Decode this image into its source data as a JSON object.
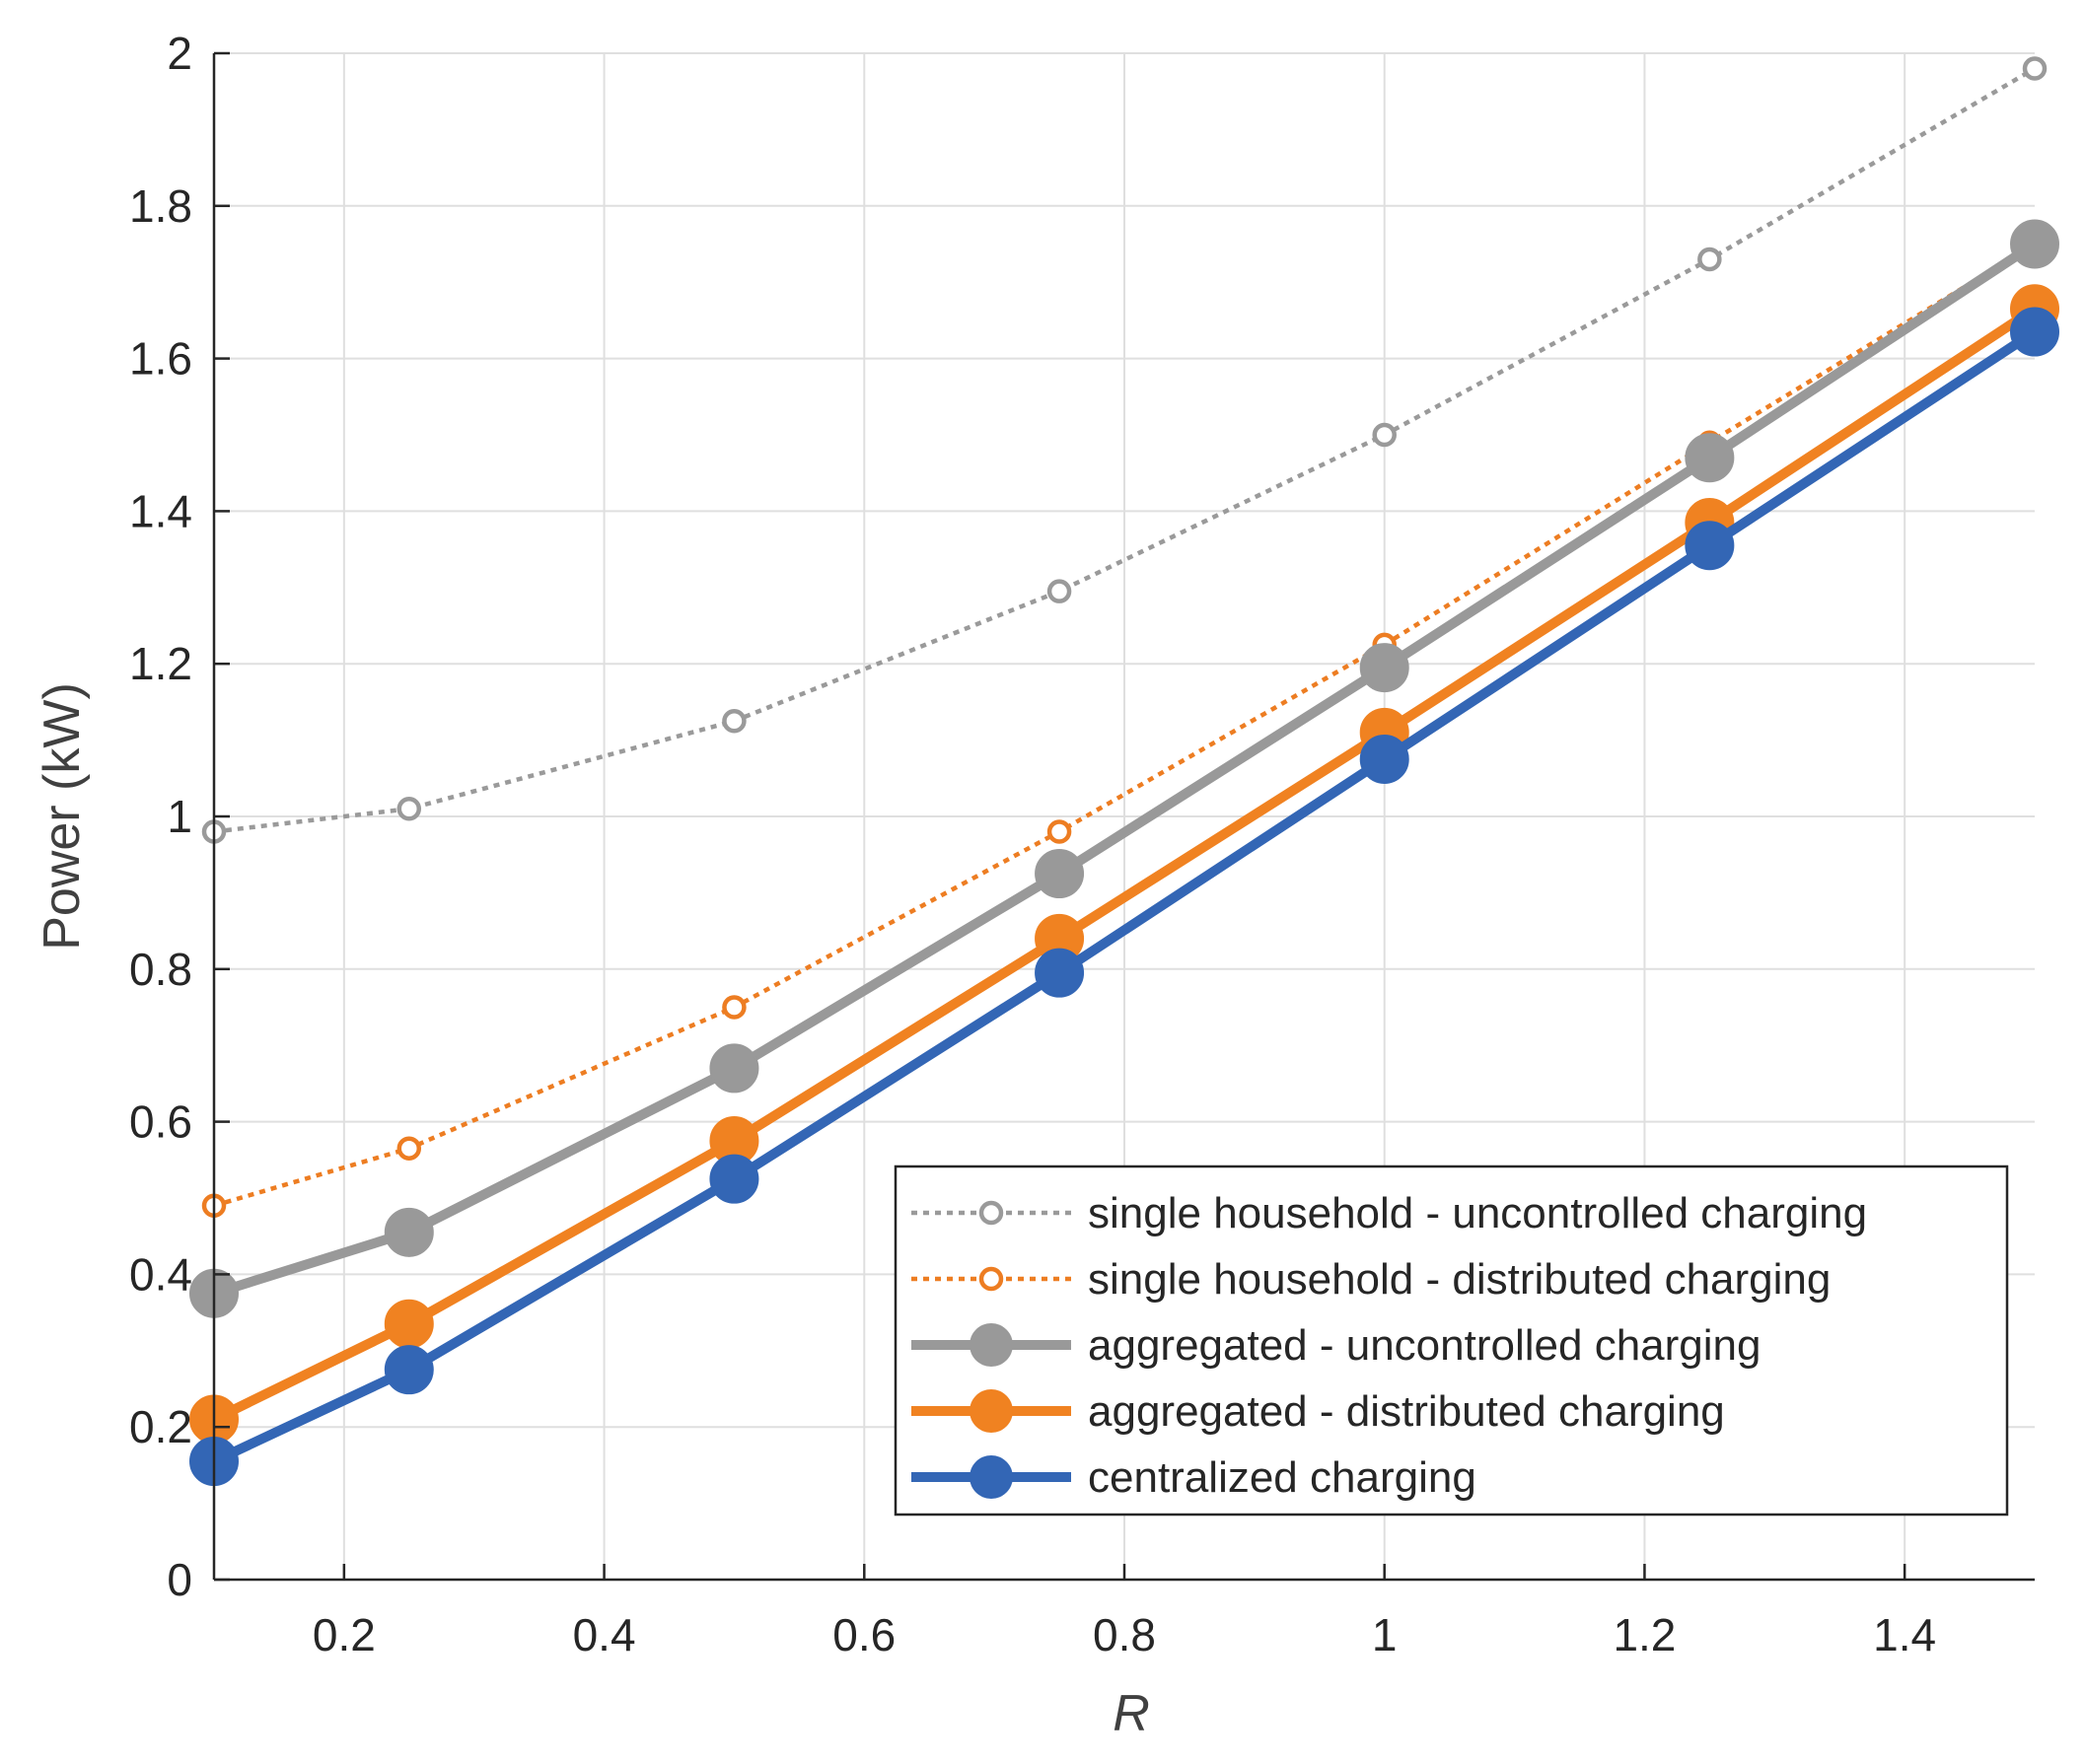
{
  "chart_data": {
    "type": "line",
    "title": "",
    "xlabel": "R",
    "ylabel": "Power (kW)",
    "xlim": [
      0.1,
      1.5
    ],
    "ylim": [
      0,
      2
    ],
    "grid": true,
    "legend_position": "bottom-right",
    "x": [
      0.1,
      0.25,
      0.5,
      0.75,
      1.0,
      1.25,
      1.5
    ],
    "xticks": [
      0.2,
      0.4,
      0.6,
      0.8,
      1,
      1.2,
      1.4
    ],
    "xtick_labels": [
      "0.2",
      "0.4",
      "0.6",
      "0.8",
      "1",
      "1.2",
      "1.4"
    ],
    "yticks": [
      0,
      0.2,
      0.4,
      0.6,
      0.8,
      1,
      1.2,
      1.4,
      1.6,
      1.8,
      2
    ],
    "ytick_labels": [
      "0",
      "0.2",
      "0.4",
      "0.6",
      "0.8",
      "1",
      "1.2",
      "1.4",
      "1.6",
      "1.8",
      "2"
    ],
    "series": [
      {
        "name": "single household - uncontrolled charging",
        "color": "#9a9a9a",
        "line_style": "dotted",
        "marker": "open-circle",
        "values": [
          0.98,
          1.01,
          1.125,
          1.295,
          1.5,
          1.73,
          1.98
        ]
      },
      {
        "name": "single household - distributed charging",
        "color": "#ed7d22",
        "line_style": "dotted",
        "marker": "open-circle",
        "values": [
          0.49,
          0.565,
          0.75,
          0.98,
          1.225,
          1.49,
          1.75
        ]
      },
      {
        "name": "aggregated - uncontrolled charging",
        "color": "#999999",
        "line_style": "solid",
        "marker": "filled-circle",
        "values": [
          0.375,
          0.455,
          0.67,
          0.925,
          1.195,
          1.47,
          1.75
        ]
      },
      {
        "name": "aggregated - distributed charging",
        "color": "#f08221",
        "line_style": "solid",
        "marker": "filled-circle",
        "values": [
          0.21,
          0.335,
          0.575,
          0.84,
          1.11,
          1.385,
          1.665
        ]
      },
      {
        "name": "centralized charging",
        "color": "#3366b5",
        "line_style": "solid",
        "marker": "filled-circle",
        "values": [
          0.155,
          0.275,
          0.525,
          0.795,
          1.075,
          1.355,
          1.635
        ]
      }
    ]
  }
}
